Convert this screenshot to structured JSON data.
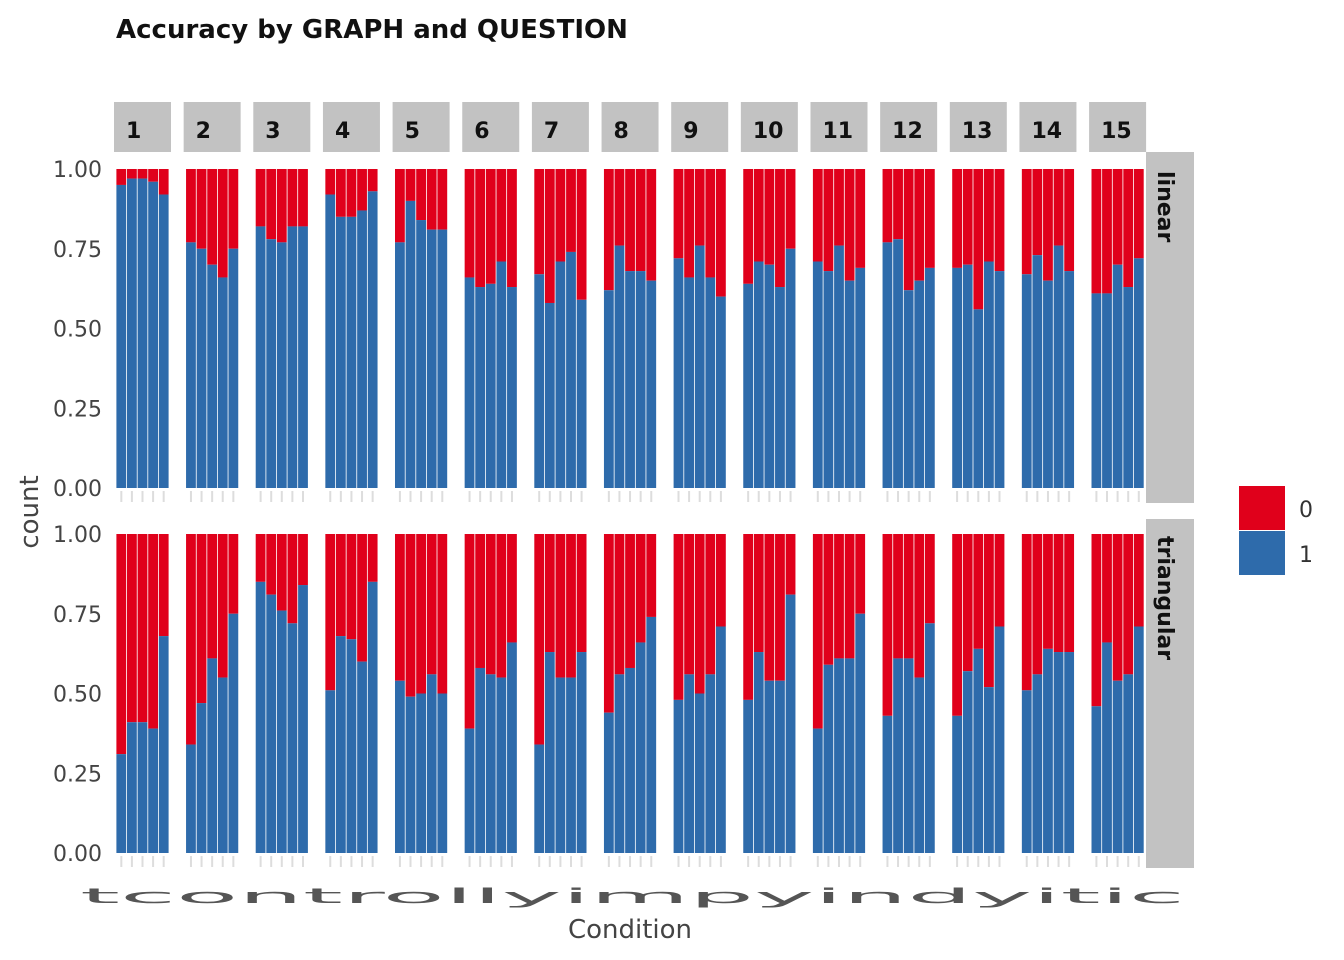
{
  "chart_data": {
    "type": "bar",
    "stacked": "fill",
    "title": "Accuracy by GRAPH and QUESTION",
    "xlabel": "Condition",
    "ylabel": "count",
    "ylim": [
      0,
      1
    ],
    "yticks": [
      "0.00",
      "0.25",
      "0.50",
      "0.75",
      "1.00"
    ],
    "column_facets": [
      "1",
      "2",
      "3",
      "4",
      "5",
      "6",
      "7",
      "8",
      "9",
      "10",
      "11",
      "12",
      "13",
      "14",
      "15"
    ],
    "row_facets": [
      "linear",
      "triangular"
    ],
    "x_tick_text": "tcontrollyimpyindyitic",
    "bars_per_facet": 5,
    "legend": {
      "position": "right",
      "entries": [
        {
          "label": "0",
          "color": "#E0001B"
        },
        {
          "label": "1",
          "color": "#2E6BAB"
        }
      ]
    },
    "series": [
      {
        "row": "linear",
        "name": "1",
        "values": [
          [
            0.95,
            0.97,
            0.97,
            0.96,
            0.92
          ],
          [
            0.77,
            0.75,
            0.7,
            0.66,
            0.75
          ],
          [
            0.82,
            0.78,
            0.77,
            0.82,
            0.82
          ],
          [
            0.92,
            0.85,
            0.85,
            0.87,
            0.93
          ],
          [
            0.77,
            0.9,
            0.84,
            0.81,
            0.81
          ],
          [
            0.66,
            0.63,
            0.64,
            0.71,
            0.63
          ],
          [
            0.67,
            0.58,
            0.71,
            0.74,
            0.59
          ],
          [
            0.62,
            0.76,
            0.68,
            0.68,
            0.65
          ],
          [
            0.72,
            0.66,
            0.76,
            0.66,
            0.6
          ],
          [
            0.64,
            0.71,
            0.7,
            0.63,
            0.75
          ],
          [
            0.71,
            0.68,
            0.76,
            0.65,
            0.69
          ],
          [
            0.77,
            0.78,
            0.62,
            0.65,
            0.69
          ],
          [
            0.69,
            0.7,
            0.56,
            0.71,
            0.68
          ],
          [
            0.67,
            0.73,
            0.65,
            0.76,
            0.68
          ],
          [
            0.61,
            0.61,
            0.7,
            0.63,
            0.72
          ]
        ]
      },
      {
        "row": "triangular",
        "name": "1",
        "values": [
          [
            0.31,
            0.41,
            0.41,
            0.39,
            0.68
          ],
          [
            0.34,
            0.47,
            0.61,
            0.55,
            0.75
          ],
          [
            0.85,
            0.81,
            0.76,
            0.72,
            0.84
          ],
          [
            0.51,
            0.68,
            0.67,
            0.6,
            0.85
          ],
          [
            0.54,
            0.49,
            0.5,
            0.56,
            0.5
          ],
          [
            0.39,
            0.58,
            0.56,
            0.55,
            0.66
          ],
          [
            0.34,
            0.63,
            0.55,
            0.55,
            0.63
          ],
          [
            0.44,
            0.56,
            0.58,
            0.66,
            0.74
          ],
          [
            0.48,
            0.56,
            0.5,
            0.56,
            0.71
          ],
          [
            0.48,
            0.63,
            0.54,
            0.54,
            0.81
          ],
          [
            0.39,
            0.59,
            0.61,
            0.61,
            0.75
          ],
          [
            0.43,
            0.61,
            0.61,
            0.55,
            0.72
          ],
          [
            0.43,
            0.57,
            0.64,
            0.52,
            0.71
          ],
          [
            0.51,
            0.56,
            0.64,
            0.63,
            0.63
          ],
          [
            0.46,
            0.66,
            0.54,
            0.56,
            0.71
          ]
        ]
      }
    ]
  }
}
